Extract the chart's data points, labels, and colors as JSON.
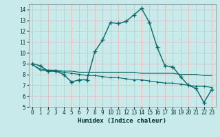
{
  "title": "",
  "xlabel": "Humidex (Indice chaleur)",
  "bg_color": "#c8eaea",
  "grid_color": "#e8b8b8",
  "line_color": "#006868",
  "ylim": [
    5,
    14.5
  ],
  "xlim": [
    -0.5,
    23.5
  ],
  "yticks": [
    5,
    6,
    7,
    8,
    9,
    10,
    11,
    12,
    13,
    14
  ],
  "xticks": [
    0,
    1,
    2,
    3,
    4,
    5,
    6,
    7,
    8,
    9,
    10,
    11,
    12,
    13,
    14,
    15,
    16,
    17,
    18,
    19,
    20,
    21,
    22,
    23
  ],
  "line1_x": [
    0,
    1,
    2,
    3,
    4,
    5,
    6,
    7,
    8,
    9,
    10,
    11,
    12,
    13,
    14,
    15,
    16,
    17,
    18,
    19,
    20,
    21,
    22,
    23
  ],
  "line1_y": [
    9.0,
    8.8,
    8.3,
    8.3,
    8.0,
    7.3,
    7.5,
    7.5,
    10.1,
    11.2,
    12.8,
    12.7,
    12.9,
    13.5,
    14.1,
    12.8,
    10.5,
    8.8,
    8.7,
    7.8,
    7.0,
    6.7,
    5.4,
    6.6
  ],
  "line2_x": [
    0,
    1,
    2,
    3,
    4,
    5,
    6,
    7,
    8,
    9,
    10,
    11,
    12,
    13,
    14,
    15,
    16,
    17,
    18,
    19,
    20,
    21,
    22,
    23
  ],
  "line2_y": [
    8.9,
    8.4,
    8.3,
    8.3,
    8.2,
    8.1,
    8.0,
    7.9,
    7.9,
    7.8,
    7.7,
    7.7,
    7.6,
    7.5,
    7.5,
    7.4,
    7.3,
    7.2,
    7.2,
    7.1,
    7.0,
    6.9,
    6.9,
    6.8
  ],
  "line3_x": [
    0,
    1,
    2,
    3,
    4,
    5,
    6,
    7,
    8,
    9,
    10,
    11,
    12,
    13,
    14,
    15,
    16,
    17,
    18,
    19,
    20,
    21,
    22,
    23
  ],
  "line3_y": [
    8.9,
    8.5,
    8.4,
    8.4,
    8.3,
    8.3,
    8.2,
    8.2,
    8.2,
    8.2,
    8.2,
    8.2,
    8.2,
    8.2,
    8.1,
    8.1,
    8.1,
    8.1,
    8.1,
    8.0,
    8.0,
    8.0,
    7.9,
    7.9
  ]
}
